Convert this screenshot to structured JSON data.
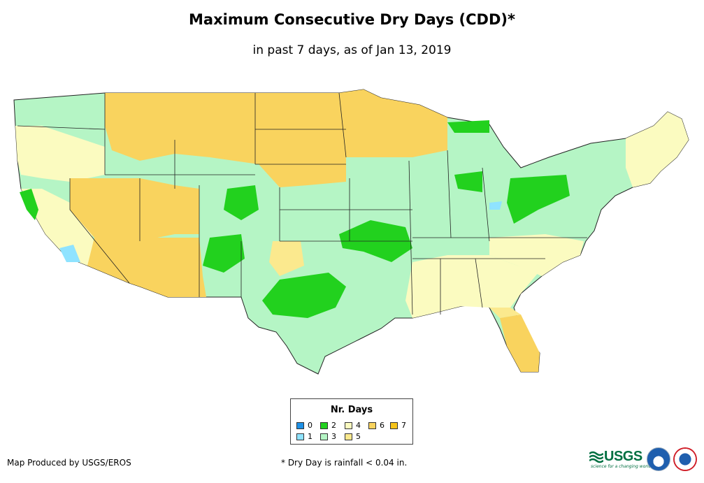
{
  "title": "Maximum Consecutive Dry Days (CDD)*",
  "subtitle": "in past 7 days, as of Jan 13, 2019",
  "legend": {
    "title": "Nr. Days",
    "items": [
      {
        "label": "0",
        "color": "#1e90e6"
      },
      {
        "label": "1",
        "color": "#8fe3ff"
      },
      {
        "label": "2",
        "color": "#22d11e"
      },
      {
        "label": "3",
        "color": "#b5f5c5"
      },
      {
        "label": "4",
        "color": "#fbfbc0"
      },
      {
        "label": "5",
        "color": "#fbe98e"
      },
      {
        "label": "6",
        "color": "#f9d35e"
      },
      {
        "label": "7",
        "color": "#f6c41a"
      }
    ]
  },
  "footer": {
    "produced_by": "Map Produced by USGS/EROS",
    "note": "* Dry Day is rainfall < 0.04 in."
  },
  "logos": {
    "usgs": "USGS",
    "usgs_tagline": "science for a changing world"
  }
}
